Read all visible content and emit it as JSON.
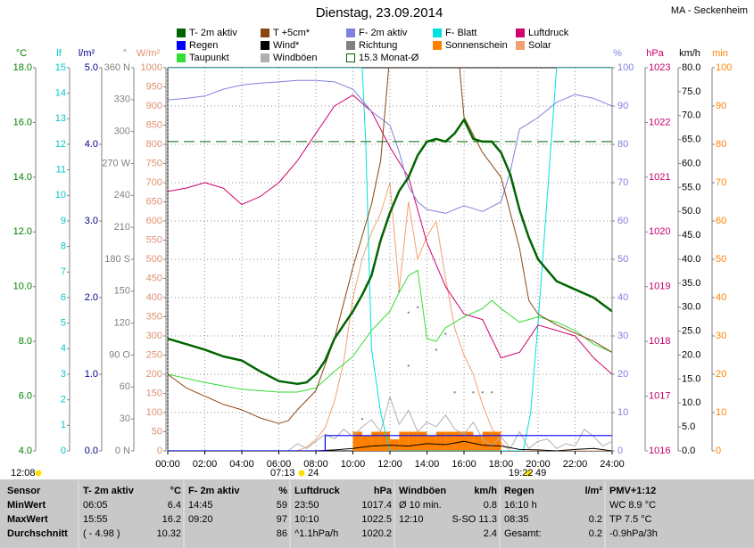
{
  "title": "Dienstag, 23.09.2014",
  "station": "MA - Seckenheim",
  "sun_times": [
    "12:08",
    "07:13",
    "24",
    "19:22",
    "49"
  ],
  "chart_data": {
    "type": "line",
    "grid": true,
    "xlim": [
      0,
      24
    ],
    "xticks": [
      {
        "value": 0,
        "label": "00:00"
      },
      {
        "value": 2,
        "label": "02:00"
      },
      {
        "value": 4,
        "label": "04:00"
      },
      {
        "value": 6,
        "label": "06:00"
      },
      {
        "value": 8,
        "label": "08:00"
      },
      {
        "value": 10,
        "label": "10:00"
      },
      {
        "value": 12,
        "label": "12:00"
      },
      {
        "value": 14,
        "label": "14:00"
      },
      {
        "value": 16,
        "label": "16:00"
      },
      {
        "value": 18,
        "label": "18:00"
      },
      {
        "value": 20,
        "label": "20:00"
      },
      {
        "value": 22,
        "label": "22:00"
      },
      {
        "value": 24,
        "label": "24:00"
      }
    ],
    "axes": [
      {
        "label": "°C",
        "color": "#008000",
        "lim": [
          4,
          18
        ],
        "ticks": [
          {
            "value": 4,
            "label": "4.0"
          },
          {
            "value": 6,
            "label": "6.0"
          },
          {
            "value": 8,
            "label": "8.0"
          },
          {
            "value": 10,
            "label": "10.0"
          },
          {
            "value": 12,
            "label": "12.0"
          },
          {
            "value": 14,
            "label": "14.0"
          },
          {
            "value": 16,
            "label": "16.0"
          },
          {
            "value": 18,
            "label": "18.0"
          }
        ]
      },
      {
        "label": "lf",
        "color": "#00c8c8",
        "lim": [
          0,
          15
        ],
        "ticks": [
          0,
          1,
          2,
          3,
          4,
          5,
          6,
          7,
          8,
          9,
          10,
          11,
          12,
          13,
          14,
          15
        ]
      },
      {
        "label": "l/m²",
        "color": "#00008b",
        "lim": [
          0,
          5
        ],
        "ticks": [
          {
            "value": 0,
            "label": "0.0"
          },
          {
            "value": 1,
            "label": "1.0"
          },
          {
            "value": 2,
            "label": "2.0"
          },
          {
            "value": 3,
            "label": "3.0"
          },
          {
            "value": 4,
            "label": "4.0"
          },
          {
            "value": 5,
            "label": "5.0"
          }
        ]
      },
      {
        "label": "°",
        "color": "#808080",
        "lim": [
          0,
          360
        ],
        "ticks": [
          {
            "value": 0,
            "label": "0 N"
          },
          30,
          60,
          {
            "value": 90,
            "label": "90 O"
          },
          120,
          150,
          {
            "value": 180,
            "label": "180 S"
          },
          210,
          240,
          {
            "value": 270,
            "label": "270 W"
          },
          300,
          330,
          {
            "value": 360,
            "label": "360 N"
          }
        ]
      },
      {
        "label": "W/m²",
        "color": "#e09070",
        "lim": [
          0,
          1000
        ],
        "ticks": [
          0,
          50,
          100,
          150,
          200,
          250,
          300,
          350,
          400,
          450,
          500,
          550,
          600,
          650,
          700,
          750,
          800,
          850,
          900,
          950,
          1000
        ]
      },
      {
        "label": "%",
        "color": "#8080e0",
        "lim": [
          0,
          100
        ],
        "grid": true,
        "ticks": [
          0,
          10,
          20,
          30,
          40,
          50,
          60,
          70,
          80,
          90,
          100
        ]
      },
      {
        "label": "hPa",
        "color": "#c8006e",
        "lim": [
          1016,
          1023
        ],
        "ticks": [
          1016,
          1017,
          1018,
          1019,
          1020,
          1021,
          1022,
          1023
        ]
      },
      {
        "label": "km/h",
        "color": "#000000",
        "lim": [
          0,
          80
        ],
        "ticks": [
          {
            "value": 0,
            "label": "0.0"
          },
          {
            "value": 5,
            "label": "5.0"
          },
          {
            "value": 10,
            "label": "10.0"
          },
          {
            "value": 15,
            "label": "15.0"
          },
          {
            "value": 20,
            "label": "20.0"
          },
          {
            "value": 25,
            "label": "25.0"
          },
          {
            "value": 30,
            "label": "30.0"
          },
          {
            "value": 35,
            "label": "35.0"
          },
          {
            "value": 40,
            "label": "40.0"
          },
          {
            "value": 45,
            "label": "45.0"
          },
          {
            "value": 50,
            "label": "50.0"
          },
          {
            "value": 55,
            "label": "55.0"
          },
          {
            "value": 60,
            "label": "60.0"
          },
          {
            "value": 65,
            "label": "65.0"
          },
          {
            "value": 70,
            "label": "70.0"
          },
          {
            "value": 75,
            "label": "75.0"
          },
          {
            "value": 80,
            "label": "80.0"
          }
        ]
      },
      {
        "label": "min",
        "color": "#ff8000",
        "lim": [
          0,
          100
        ],
        "ticks": [
          0,
          10,
          20,
          30,
          40,
          50,
          60,
          70,
          80,
          90,
          100
        ]
      }
    ],
    "series": [
      {
        "name": "T- 2m aktiv",
        "color": "#006400",
        "axis": 0,
        "style": "line",
        "width": 2.5,
        "x": [
          0,
          1,
          2,
          3,
          4,
          5,
          6,
          7,
          7.5,
          8,
          8.5,
          9,
          9.5,
          10,
          10.5,
          11,
          11.5,
          12,
          12.5,
          13,
          13.5,
          14,
          14.5,
          15,
          15.5,
          16,
          16.5,
          17,
          17.5,
          18,
          18.5,
          19,
          19.5,
          20,
          21,
          22,
          23,
          24
        ],
        "values": [
          8.1,
          7.9,
          7.7,
          7.45,
          7.3,
          6.9,
          6.55,
          6.45,
          6.5,
          6.8,
          7.3,
          8.1,
          8.6,
          9.1,
          9.7,
          10.4,
          11.7,
          12.7,
          13.5,
          14.0,
          14.8,
          15.3,
          15.4,
          15.3,
          15.6,
          16.1,
          15.4,
          15.3,
          15.3,
          14.9,
          14.1,
          12.8,
          11.8,
          11.0,
          10.2,
          9.9,
          9.6,
          9.1
        ]
      },
      {
        "name": "Regen",
        "color": "#0000ff",
        "axis": 2,
        "style": "line",
        "width": 1.2,
        "x": [
          0,
          8.5,
          8.5,
          24
        ],
        "values": [
          0,
          0,
          0.2,
          0.2
        ]
      },
      {
        "name": "Taupunkt",
        "color": "#33dd33",
        "axis": 0,
        "style": "line",
        "width": 1,
        "x": [
          0,
          2,
          4,
          6,
          7,
          8,
          9,
          10,
          11,
          12,
          12.5,
          13,
          13.5,
          14,
          14.5,
          15,
          16,
          17,
          17.5,
          18,
          19,
          20,
          21,
          22,
          23,
          24
        ],
        "values": [
          6.8,
          6.5,
          6.25,
          6.15,
          6.15,
          6.3,
          6.9,
          7.45,
          8.4,
          9.1,
          9.8,
          10.4,
          10.6,
          8.1,
          8.0,
          8.5,
          8.9,
          9.2,
          9.5,
          9.2,
          8.7,
          8.9,
          8.7,
          8.4,
          7.9,
          7.6
        ]
      },
      {
        "name": "T +5cm*",
        "color": "#8b4513",
        "axis": 0,
        "style": "line",
        "width": 1,
        "x": [
          0,
          1,
          2,
          3,
          4,
          5,
          6,
          6.5,
          7,
          8,
          9,
          10,
          11,
          11.5,
          12,
          12.5,
          14,
          15.5,
          16,
          17,
          18,
          19,
          19.5,
          20,
          21,
          22,
          23,
          24
        ],
        "values": [
          6.8,
          6.3,
          6.0,
          5.7,
          5.5,
          5.2,
          5.0,
          5.1,
          5.5,
          6.2,
          8.1,
          10.7,
          13.0,
          14.6,
          18.5,
          21,
          22,
          20,
          16.2,
          14.9,
          14.0,
          11.4,
          9.5,
          9.0,
          8.6,
          8.3,
          8.0,
          7.6
        ]
      },
      {
        "name": "Wind*",
        "color": "#000000",
        "axis": 7,
        "style": "line",
        "width": 1,
        "x": [
          0,
          8,
          9,
          10,
          11,
          12,
          13,
          14,
          15,
          16,
          17,
          18,
          19,
          20,
          21,
          22,
          23,
          24
        ],
        "values": [
          0,
          0,
          0.2,
          0.5,
          1.0,
          1.2,
          1.0,
          1.5,
          1.3,
          2.0,
          1.2,
          1.0,
          0.3,
          0.2,
          0,
          0.3,
          0.5,
          0
        ]
      },
      {
        "name": "Windböen",
        "color": "#b0b0b0",
        "axis": 7,
        "style": "line",
        "width": 1,
        "x": [
          0,
          0.5,
          1,
          1.5,
          2,
          2.5,
          3,
          3.5,
          4,
          4.5,
          5,
          5.5,
          6,
          6.5,
          7,
          7.5,
          8,
          8.5,
          9,
          9.5,
          10,
          10.5,
          11,
          11.5,
          12,
          12.5,
          13,
          13.5,
          14,
          14.5,
          15,
          15.5,
          16,
          16.5,
          17,
          17.5,
          18,
          18.5,
          19,
          19.5,
          20,
          20.5,
          21,
          21.5,
          22,
          22.5,
          23,
          23.5,
          24
        ],
        "values": [
          0,
          0,
          0,
          0,
          0,
          0,
          0,
          0,
          0,
          0,
          0,
          0,
          0,
          0,
          1.5,
          0.5,
          2.0,
          3.5,
          2.5,
          4.5,
          3.0,
          5.0,
          6.5,
          4.0,
          11.3,
          5.5,
          8.5,
          4.0,
          6.0,
          5.0,
          7.5,
          4.5,
          3.5,
          6.0,
          2.5,
          1.0,
          3.0,
          0.5,
          4.0,
          0.5,
          2.0,
          2.5,
          0.5,
          1.5,
          1.0,
          4.5,
          3.0,
          1.0,
          2.0
        ]
      },
      {
        "name": "F- 2m aktiv",
        "color": "#8080e0",
        "axis": 5,
        "style": "line",
        "width": 1,
        "x": [
          0,
          1,
          2,
          3,
          4,
          5,
          6,
          7,
          8,
          9,
          10,
          11,
          12,
          12.5,
          13,
          13.5,
          14,
          15,
          16,
          17,
          18,
          18.5,
          19,
          20,
          21,
          22,
          23,
          24
        ],
        "values": [
          91.6,
          92,
          92.6,
          94.4,
          95.5,
          96,
          96.3,
          96.7,
          96.7,
          96.3,
          94.4,
          88.6,
          85,
          78,
          69,
          65,
          63,
          62,
          64,
          62.5,
          65,
          73,
          84,
          87,
          91,
          93,
          92,
          90
        ]
      },
      {
        "name": "Richtung",
        "color": "#808080",
        "axis": 3,
        "style": "dots",
        "x": [
          10.5,
          12.5,
          13,
          13,
          13.5,
          14.5,
          15,
          15.5,
          16.5,
          17,
          17.5
        ],
        "values": [
          30,
          150,
          130,
          80,
          135,
          95,
          110,
          55,
          55,
          55,
          55
        ]
      },
      {
        "name": "15.3 Monat-Ø",
        "color": "#006400",
        "axis": 0,
        "style": "dashed",
        "width": 1,
        "x": [
          0,
          24
        ],
        "values": [
          15.3,
          15.3
        ]
      },
      {
        "name": "F- Blatt",
        "color": "#00e0e0",
        "axis": 1,
        "style": "line",
        "width": 1,
        "x": [
          0,
          10.5,
          10.7,
          11,
          11.5,
          12,
          19.2,
          19.6,
          20,
          20.5,
          21,
          24
        ],
        "values": [
          15,
          15,
          12,
          4,
          1.5,
          0,
          0,
          1.5,
          5,
          10,
          15,
          15
        ]
      },
      {
        "name": "Sonnenschein",
        "color": "#ff8000",
        "axis": 8,
        "style": "bars",
        "x": [
          10,
          10.5,
          11,
          11.5,
          12,
          12.5,
          13,
          13.5,
          14,
          14.5,
          15,
          15.5,
          16,
          16.5,
          17,
          17.5
        ],
        "values": [
          5,
          4,
          5,
          5,
          3,
          5,
          5,
          5,
          4,
          5,
          5,
          5,
          5,
          4,
          5,
          5
        ]
      },
      {
        "name": "Luftdruck",
        "color": "#d0006f",
        "axis": 6,
        "style": "line",
        "width": 1,
        "x": [
          0,
          1,
          2,
          3,
          4,
          5,
          6,
          7,
          8,
          9,
          10,
          11,
          12,
          13,
          14,
          15,
          16,
          17,
          18,
          19,
          20,
          21,
          22,
          23,
          24
        ],
        "values": [
          1020.74,
          1020.8,
          1020.9,
          1020.8,
          1020.5,
          1020.65,
          1020.9,
          1021.3,
          1021.8,
          1022.3,
          1022.5,
          1022.2,
          1021.55,
          1021.0,
          1019.8,
          1019.0,
          1018.5,
          1018.4,
          1017.7,
          1017.8,
          1018.3,
          1018.2,
          1018.1,
          1017.7,
          1017.4
        ]
      },
      {
        "name": "Solar",
        "color": "#f4a070",
        "axis": 4,
        "style": "line",
        "width": 1,
        "x": [
          0,
          7,
          7.5,
          8,
          8.5,
          9,
          9.5,
          10,
          10.5,
          11,
          11.5,
          12,
          12.5,
          13,
          13.5,
          14,
          14.5,
          15,
          15.5,
          16,
          16.5,
          17,
          17.5,
          18,
          18.5,
          24
        ],
        "values": [
          0,
          0,
          10,
          30,
          60,
          130,
          230,
          400,
          500,
          570,
          620,
          700,
          420,
          650,
          500,
          560,
          600,
          450,
          320,
          250,
          200,
          120,
          60,
          20,
          0,
          0
        ]
      }
    ]
  },
  "table": {
    "headers": [
      {
        "l": "Sensor"
      },
      {
        "l": "T- 2m aktiv",
        "r": "°C"
      },
      {
        "l": "F- 2m aktiv",
        "r": "%"
      },
      {
        "l": "Luftdruck",
        "r": "hPa"
      },
      {
        "l": "Windböen",
        "r": "km/h"
      },
      {
        "l": "Regen",
        "r": "l/m²"
      },
      {
        "l": "PMV+1:12"
      }
    ],
    "rows": [
      [
        {
          "l": "MinWert"
        },
        {
          "l": "06:05",
          "r": "6.4"
        },
        {
          "l": "14:45",
          "r": "59"
        },
        {
          "l": "23:50",
          "r": "1017.4"
        },
        {
          "l": "Ø 10 min.",
          "r": "0.8"
        },
        {
          "l": "16:10 h"
        },
        {
          "l": "WC 8.9 °C"
        }
      ],
      [
        {
          "l": "MaxWert"
        },
        {
          "l": "15:55",
          "r": "16.2"
        },
        {
          "l": "09:20",
          "r": "97"
        },
        {
          "l": "10:10",
          "r": "1022.5"
        },
        {
          "l": "12:10",
          "r": "S-SO 11.3"
        },
        {
          "l": "08:35",
          "r": "0.2"
        },
        {
          "l": "TP 7.5 °C"
        }
      ],
      [
        {
          "l": "Durchschnitt"
        },
        {
          "l": "( - 4.98 )",
          "r": "10.32"
        },
        {
          "r": "86"
        },
        {
          "l": "^1.1hPa/h",
          "r": "1020.2"
        },
        {
          "r": "2.4"
        },
        {
          "l": "Gesamt:",
          "r": "0.2"
        },
        {
          "l": "-0.9hPa/3h"
        }
      ]
    ]
  }
}
